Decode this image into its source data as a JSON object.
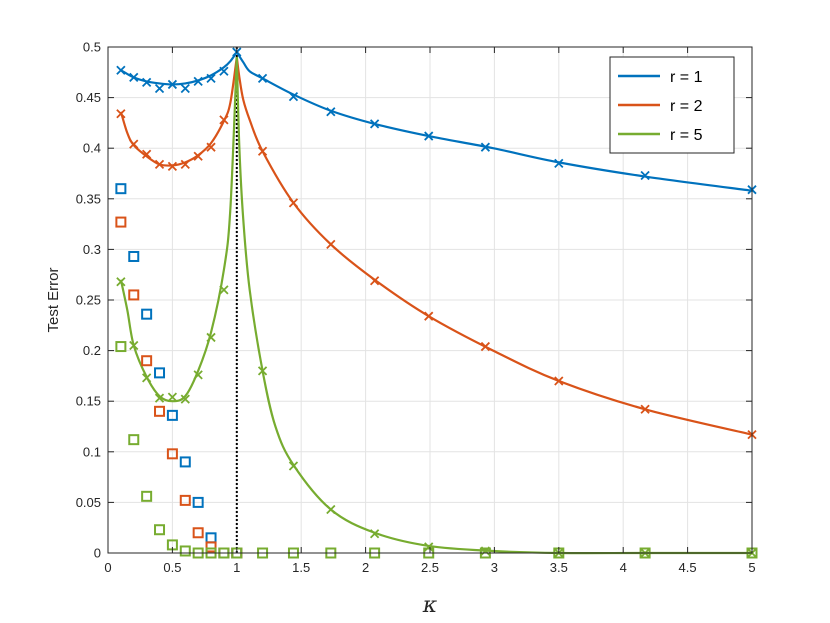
{
  "chart_data": {
    "type": "line",
    "title": "",
    "xlabel": "κ",
    "ylabel": "Test Error",
    "xlim": [
      0,
      5
    ],
    "ylim": [
      0,
      0.5
    ],
    "xticks": [
      "0",
      "0.5",
      "1",
      "1.5",
      "2",
      "2.5",
      "3",
      "3.5",
      "4",
      "4.5",
      "5"
    ],
    "yticks": [
      "0",
      "0.05",
      "0.1",
      "0.15",
      "0.2",
      "0.25",
      "0.3",
      "0.35",
      "0.4",
      "0.45",
      "0.5"
    ],
    "grid": true,
    "legend_position": "top-right",
    "vertical_line": {
      "x": 1,
      "style": "dotted",
      "color": "#000000"
    },
    "series": [
      {
        "name": "r = 1",
        "color": "#0072BD",
        "curve_left": [
          [
            0.1,
            0.477
          ],
          [
            0.2,
            0.47
          ],
          [
            0.3,
            0.466
          ],
          [
            0.4,
            0.464
          ],
          [
            0.5,
            0.463
          ],
          [
            0.6,
            0.464
          ],
          [
            0.7,
            0.467
          ],
          [
            0.8,
            0.472
          ],
          [
            0.9,
            0.48
          ],
          [
            0.95,
            0.486
          ],
          [
            1.0,
            0.495
          ]
        ],
        "curve_right": [
          [
            1.0,
            0.495
          ],
          [
            1.05,
            0.485
          ],
          [
            1.1,
            0.476
          ],
          [
            1.2,
            0.469
          ],
          [
            1.44,
            0.453
          ],
          [
            1.73,
            0.437
          ],
          [
            2.07,
            0.424
          ],
          [
            2.49,
            0.412
          ],
          [
            2.99,
            0.4
          ],
          [
            3.5,
            0.386
          ],
          [
            4.17,
            0.372
          ],
          [
            5.0,
            0.358
          ]
        ],
        "test_markers": [
          [
            0.1,
            0.477
          ],
          [
            0.2,
            0.47
          ],
          [
            0.3,
            0.465
          ],
          [
            0.4,
            0.459
          ],
          [
            0.5,
            0.463
          ],
          [
            0.6,
            0.459
          ],
          [
            0.7,
            0.466
          ],
          [
            0.8,
            0.469
          ],
          [
            0.9,
            0.476
          ],
          [
            1.0,
            0.495
          ],
          [
            1.2,
            0.469
          ],
          [
            1.44,
            0.451
          ],
          [
            1.73,
            0.436
          ],
          [
            2.07,
            0.424
          ],
          [
            2.49,
            0.412
          ],
          [
            2.93,
            0.401
          ],
          [
            3.5,
            0.385
          ],
          [
            4.17,
            0.373
          ],
          [
            5.0,
            0.359
          ]
        ],
        "train_markers": [
          [
            0.1,
            0.36
          ],
          [
            0.2,
            0.293
          ],
          [
            0.3,
            0.236
          ],
          [
            0.4,
            0.178
          ],
          [
            0.5,
            0.136
          ],
          [
            0.6,
            0.09
          ],
          [
            0.7,
            0.05
          ],
          [
            0.8,
            0.015
          ],
          [
            0.9,
            0.0
          ],
          [
            1.0,
            0.0
          ]
        ]
      },
      {
        "name": "r = 2",
        "color": "#D95319",
        "curve_left": [
          [
            0.1,
            0.436
          ],
          [
            0.15,
            0.415
          ],
          [
            0.2,
            0.403
          ],
          [
            0.3,
            0.392
          ],
          [
            0.4,
            0.384
          ],
          [
            0.5,
            0.383
          ],
          [
            0.6,
            0.386
          ],
          [
            0.7,
            0.393
          ],
          [
            0.8,
            0.405
          ],
          [
            0.9,
            0.427
          ],
          [
            0.95,
            0.445
          ],
          [
            1.0,
            0.49
          ]
        ],
        "curve_right": [
          [
            1.0,
            0.49
          ],
          [
            1.02,
            0.47
          ],
          [
            1.05,
            0.448
          ],
          [
            1.1,
            0.428
          ],
          [
            1.2,
            0.397
          ],
          [
            1.44,
            0.346
          ],
          [
            1.73,
            0.305
          ],
          [
            2.07,
            0.27
          ],
          [
            2.49,
            0.234
          ],
          [
            2.99,
            0.2
          ],
          [
            3.5,
            0.17
          ],
          [
            4.17,
            0.142
          ],
          [
            5.0,
            0.117
          ]
        ],
        "test_markers": [
          [
            0.1,
            0.434
          ],
          [
            0.2,
            0.404
          ],
          [
            0.3,
            0.394
          ],
          [
            0.4,
            0.384
          ],
          [
            0.5,
            0.382
          ],
          [
            0.6,
            0.384
          ],
          [
            0.7,
            0.392
          ],
          [
            0.8,
            0.401
          ],
          [
            0.9,
            0.428
          ],
          [
            1.2,
            0.397
          ],
          [
            1.44,
            0.346
          ],
          [
            1.73,
            0.305
          ],
          [
            2.07,
            0.269
          ],
          [
            2.49,
            0.234
          ],
          [
            2.93,
            0.204
          ],
          [
            3.5,
            0.17
          ],
          [
            4.17,
            0.142
          ],
          [
            5.0,
            0.117
          ]
        ],
        "train_markers": [
          [
            0.1,
            0.327
          ],
          [
            0.2,
            0.255
          ],
          [
            0.3,
            0.19
          ],
          [
            0.4,
            0.14
          ],
          [
            0.5,
            0.098
          ],
          [
            0.6,
            0.052
          ],
          [
            0.7,
            0.02
          ],
          [
            0.8,
            0.006
          ],
          [
            0.9,
            0.0
          ],
          [
            1.0,
            0.0
          ]
        ]
      },
      {
        "name": "r = 5",
        "color": "#77AC30",
        "curve_left": [
          [
            0.1,
            0.27
          ],
          [
            0.15,
            0.24
          ],
          [
            0.2,
            0.205
          ],
          [
            0.3,
            0.174
          ],
          [
            0.4,
            0.155
          ],
          [
            0.5,
            0.15
          ],
          [
            0.6,
            0.155
          ],
          [
            0.7,
            0.18
          ],
          [
            0.8,
            0.218
          ],
          [
            0.9,
            0.28
          ],
          [
            0.95,
            0.34
          ],
          [
            1.0,
            0.49
          ]
        ],
        "curve_right": [
          [
            1.0,
            0.49
          ],
          [
            1.02,
            0.4
          ],
          [
            1.05,
            0.33
          ],
          [
            1.1,
            0.26
          ],
          [
            1.2,
            0.18
          ],
          [
            1.3,
            0.125
          ],
          [
            1.44,
            0.087
          ],
          [
            1.73,
            0.043
          ],
          [
            2.07,
            0.02
          ],
          [
            2.49,
            0.007
          ],
          [
            2.99,
            0.002
          ],
          [
            3.5,
            0.0
          ],
          [
            4.17,
            0.0
          ],
          [
            5.0,
            0.0
          ]
        ],
        "test_markers": [
          [
            0.1,
            0.268
          ],
          [
            0.2,
            0.205
          ],
          [
            0.3,
            0.173
          ],
          [
            0.4,
            0.153
          ],
          [
            0.5,
            0.154
          ],
          [
            0.6,
            0.152
          ],
          [
            0.7,
            0.176
          ],
          [
            0.8,
            0.213
          ],
          [
            0.9,
            0.26
          ],
          [
            1.2,
            0.18
          ],
          [
            1.44,
            0.086
          ],
          [
            1.73,
            0.043
          ],
          [
            2.07,
            0.019
          ],
          [
            2.49,
            0.006
          ],
          [
            2.93,
            0.002
          ],
          [
            3.5,
            0.0
          ],
          [
            4.17,
            0.0
          ],
          [
            5.0,
            0.0
          ]
        ],
        "train_markers": [
          [
            0.1,
            0.204
          ],
          [
            0.2,
            0.112
          ],
          [
            0.3,
            0.056
          ],
          [
            0.4,
            0.023
          ],
          [
            0.5,
            0.008
          ],
          [
            0.6,
            0.002
          ],
          [
            0.7,
            0.0
          ],
          [
            0.8,
            0.0
          ],
          [
            0.9,
            0.0
          ],
          [
            1.0,
            0.0
          ],
          [
            1.2,
            0.0
          ],
          [
            1.44,
            0.0
          ],
          [
            1.73,
            0.0
          ],
          [
            2.07,
            0.0
          ],
          [
            2.49,
            0.0
          ],
          [
            2.93,
            0.0
          ],
          [
            3.5,
            0.0
          ],
          [
            4.17,
            0.0
          ],
          [
            5.0,
            0.0
          ]
        ]
      }
    ]
  }
}
